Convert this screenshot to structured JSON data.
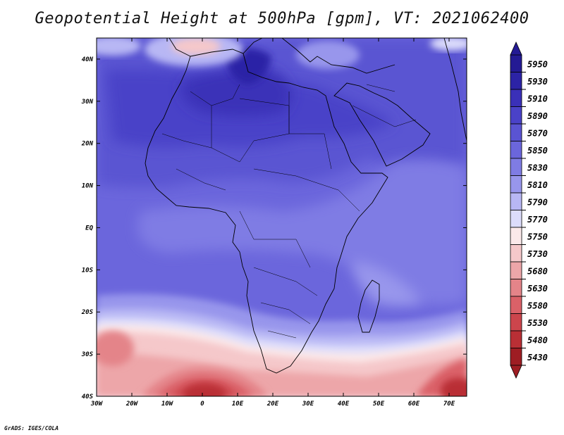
{
  "title": "Geopotential Height at 500hPa [gpm], VT: 2021062400",
  "credit": "GrADS: IGES/COLA",
  "map": {
    "region": "Africa",
    "lon_range": [
      -30,
      75
    ],
    "lat_range": [
      -40,
      45
    ],
    "lon_ticks": [
      {
        "value": -30,
        "label": "30W"
      },
      {
        "value": -20,
        "label": "20W"
      },
      {
        "value": -10,
        "label": "10W"
      },
      {
        "value": 0,
        "label": "0"
      },
      {
        "value": 10,
        "label": "10E"
      },
      {
        "value": 20,
        "label": "20E"
      },
      {
        "value": 30,
        "label": "30E"
      },
      {
        "value": 40,
        "label": "40E"
      },
      {
        "value": 50,
        "label": "50E"
      },
      {
        "value": 60,
        "label": "60E"
      },
      {
        "value": 70,
        "label": "70E"
      }
    ],
    "lat_ticks": [
      {
        "value": 40,
        "label": "40N"
      },
      {
        "value": 30,
        "label": "30N"
      },
      {
        "value": 20,
        "label": "20N"
      },
      {
        "value": 10,
        "label": "10N"
      },
      {
        "value": 0,
        "label": "EQ"
      },
      {
        "value": -10,
        "label": "10S"
      },
      {
        "value": -20,
        "label": "20S"
      },
      {
        "value": -30,
        "label": "30S"
      },
      {
        "value": -40,
        "label": "40S"
      }
    ]
  },
  "colorbar": {
    "levels": [
      {
        "label": "5950",
        "color": "#241a94"
      },
      {
        "label": "5930",
        "color": "#2c23a6"
      },
      {
        "label": "5910",
        "color": "#3a30b8"
      },
      {
        "label": "5890",
        "color": "#4a42c8"
      },
      {
        "label": "5870",
        "color": "#5a54d2"
      },
      {
        "label": "5850",
        "color": "#6b66dc"
      },
      {
        "label": "5830",
        "color": "#7f7ce4"
      },
      {
        "label": "5810",
        "color": "#9896ec"
      },
      {
        "label": "5790",
        "color": "#b8b7f4"
      },
      {
        "label": "5770",
        "color": "#dcdcfb"
      },
      {
        "label": "5750",
        "color": "#fbe9ea"
      },
      {
        "label": "5730",
        "color": "#f5c8ca"
      },
      {
        "label": "5680",
        "color": "#eda6a9"
      },
      {
        "label": "5630",
        "color": "#e48489"
      },
      {
        "label": "5580",
        "color": "#da6168"
      },
      {
        "label": "5530",
        "color": "#cc454c"
      },
      {
        "label": "5480",
        "color": "#b92f35"
      },
      {
        "label": "5430",
        "color": "#9e1d23"
      }
    ]
  }
}
